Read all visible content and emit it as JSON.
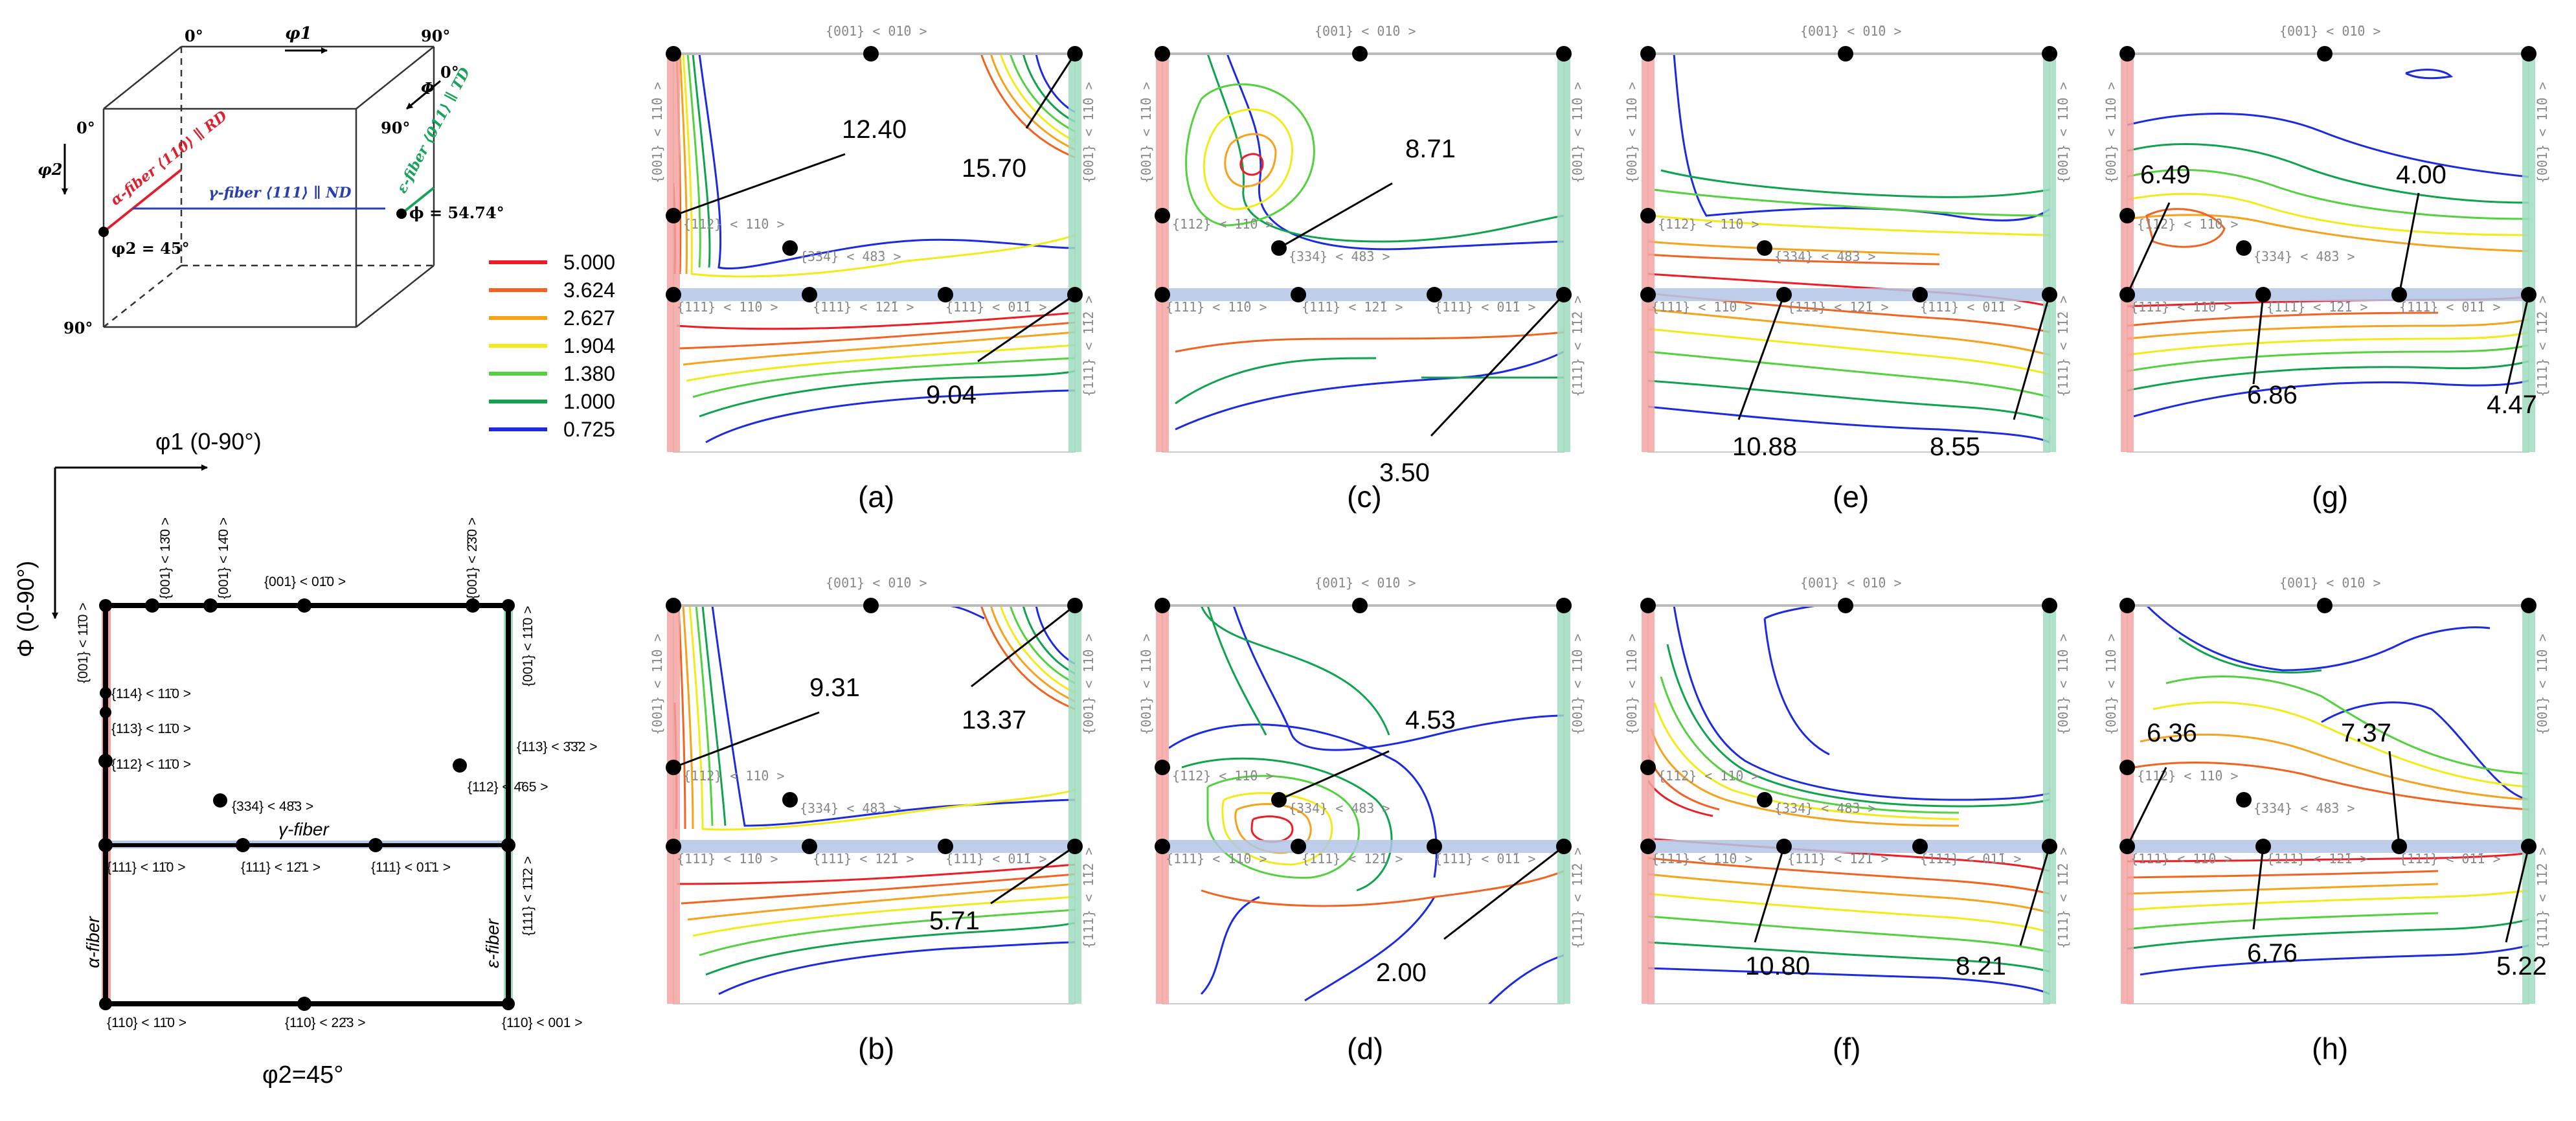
{
  "colors": {
    "alpha_fiber": "#f4a3a3",
    "gamma_fiber": "#b3c6e6",
    "epsilon_fiber": "#9fdcc0",
    "alpha_label": "#e0202e",
    "gamma_label": "#2a3fb0",
    "epsilon_label": "#19a35a",
    "dot": "#000000",
    "border": "#bbbbbb",
    "text_grey": "#888888"
  },
  "cube": {
    "phi1_axis_label": "φ1",
    "Phi_axis_label": "Φ",
    "phi2_axis_label": "φ2",
    "corner_top_left": "0°",
    "corner_top_right": "90°",
    "corner_right_upper": "0°",
    "corner_left_zero": "0°",
    "corner_mid_90": "90°",
    "corner_bottom_90": "90°",
    "alpha_fiber": "α-fiber ⟨110⟩ ∥ RD",
    "gamma_fiber": "γ-fiber ⟨111⟩ ∥ ND",
    "epsilon_fiber": "ε-fiber ⟨011⟩ ∥ TD",
    "phi2_45": "φ2 = 45°",
    "phi_5474": "ϕ = 54.74°"
  },
  "legend": {
    "title": "",
    "levels": [
      {
        "value": "5.000",
        "color": "#ee1c24"
      },
      {
        "value": "3.624",
        "color": "#f26322"
      },
      {
        "value": "2.627",
        "color": "#f7a21b"
      },
      {
        "value": "1.904",
        "color": "#f4ea18"
      },
      {
        "value": "1.380",
        "color": "#54d13e"
      },
      {
        "value": "1.000",
        "color": "#10a34e"
      },
      {
        "value": "0.725",
        "color": "#1c2be0"
      }
    ]
  },
  "key_map": {
    "axis_phi1": "φ1 (0-90°)",
    "axis_Phi": "Φ (0-90°)",
    "phi2_caption": "φ2=45°",
    "top_001_1-10": "{001} < 11̄0 >",
    "top_001_130": "{001} < 13̄0 >",
    "top_001_140": "{001} < 14̄0 >",
    "top_001_010": "{001} < 01̄0 >",
    "top_001_230": "{001} < 2̄3̄0 >",
    "right_001_110": "{001} < 11̄0 >",
    "left_001_110": "{001} < 11̄0 >",
    "c114": "{114} < 11̄0 >",
    "c113": "{113} < 11̄0 >",
    "c112": "{112} < 11̄0 >",
    "c334": "{334} < 48̄3 >",
    "c113_332": "{113} < 3̄3̄2 >",
    "c112_465": "{112} < 4̄65 >",
    "gamma_label": "γ-fiber",
    "g111_110": "{111} < 11̄0 >",
    "g111_121": "{111} < 12̄1 >",
    "g111_011": "{111} < 01̄1 >",
    "right_111_112": "{111} < 1̄1̄2 >",
    "alpha_label": "α-fiber",
    "epsilon_label": "ε-fiber",
    "b110_110": "{110} < 11̄0 >",
    "b110_223": "{110} < 22̄3 >",
    "b110_001": "{110} < 001 >"
  },
  "panel_labels": {
    "top_center": "{001} < 01̄0 >",
    "left_top": "{001} < 11̄0 >",
    "right_top": "{001} < 11̄0 >",
    "right_bottom": "{111} < 1̄1̄2 >",
    "c112": "{112} < 11̄0 >",
    "c334": "{334} < 48̄3 >",
    "g110": "{111} < 11̄0 >",
    "g121": "{111} < 12̄1 >",
    "g011": "{111} < 01̄1 >"
  },
  "panels": [
    {
      "letter": "(a)",
      "values": [
        "12.40",
        "15.70",
        "9.04"
      ]
    },
    {
      "letter": "(c)",
      "values": [
        "8.71",
        "3.50"
      ]
    },
    {
      "letter": "(e)",
      "values": [
        "10.88",
        "8.55"
      ]
    },
    {
      "letter": "(g)",
      "values": [
        "6.49",
        "4.00",
        "6.86",
        "4.47"
      ]
    },
    {
      "letter": "(b)",
      "values": [
        "9.31",
        "13.37",
        "5.71"
      ]
    },
    {
      "letter": "(d)",
      "values": [
        "4.53",
        "2.00"
      ]
    },
    {
      "letter": "(f)",
      "values": [
        "10.80",
        "8.21"
      ]
    },
    {
      "letter": "(h)",
      "values": [
        "6.36",
        "7.37",
        "6.76",
        "5.22"
      ]
    }
  ]
}
